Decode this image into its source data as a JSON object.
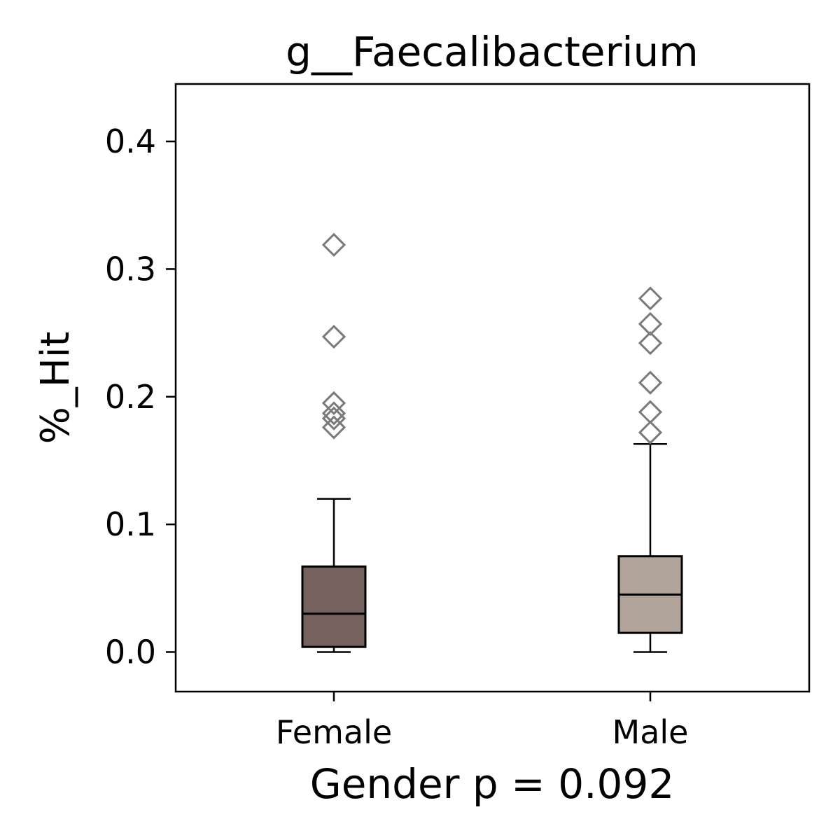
{
  "chart_data": {
    "type": "box",
    "title": "g__Faecalibacterium",
    "xlabel": "Gender p = 0.092",
    "ylabel": "%_Hit",
    "ylim": [
      -0.031,
      0.445
    ],
    "yticks": [
      0.0,
      0.1,
      0.2,
      0.3,
      0.4
    ],
    "ytick_labels": [
      "0.0",
      "0.1",
      "0.2",
      "0.3",
      "0.4"
    ],
    "categories": [
      "Female",
      "Male"
    ],
    "grid": false,
    "legend": "none",
    "series": [
      {
        "category": "Female",
        "color": "#75625e",
        "whisker_low": 0.0,
        "q1": 0.004,
        "median": 0.03,
        "q3": 0.067,
        "whisker_high": 0.12,
        "outliers": [
          0.319,
          0.247,
          0.195,
          0.187,
          0.183,
          0.176
        ]
      },
      {
        "category": "Male",
        "color": "#b0a49b",
        "whisker_low": 0.0,
        "q1": 0.015,
        "median": 0.045,
        "q3": 0.075,
        "whisker_high": 0.163,
        "outliers": [
          0.277,
          0.257,
          0.242,
          0.211,
          0.188,
          0.172
        ]
      }
    ],
    "outlier_marker": "diamond",
    "outlier_color": "#7a7a7a"
  }
}
